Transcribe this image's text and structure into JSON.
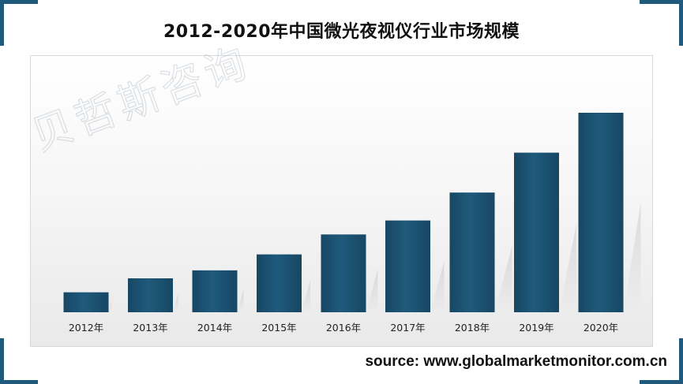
{
  "title": "2012-2020年中国微光夜视仪行业市场规模",
  "source": "source: www.globalmarketmonitor.com.cn",
  "watermark": "贝哲斯咨询",
  "colors": {
    "bar": "#1f5a7c",
    "bar_dark": "#174763",
    "accent": "#1f5a7c"
  },
  "chart_data": {
    "type": "bar",
    "title": "2012-2020年中国微光夜视仪行业市场规模",
    "categories": [
      "2012年",
      "2013年",
      "2014年",
      "2015年",
      "2016年",
      "2017年",
      "2018年",
      "2019年",
      "2020年"
    ],
    "values": [
      10,
      17,
      21,
      29,
      39,
      46,
      60,
      80,
      100
    ],
    "ylim": [
      0,
      100
    ],
    "y_axis_shown": false,
    "grid": false,
    "legend": "none"
  }
}
